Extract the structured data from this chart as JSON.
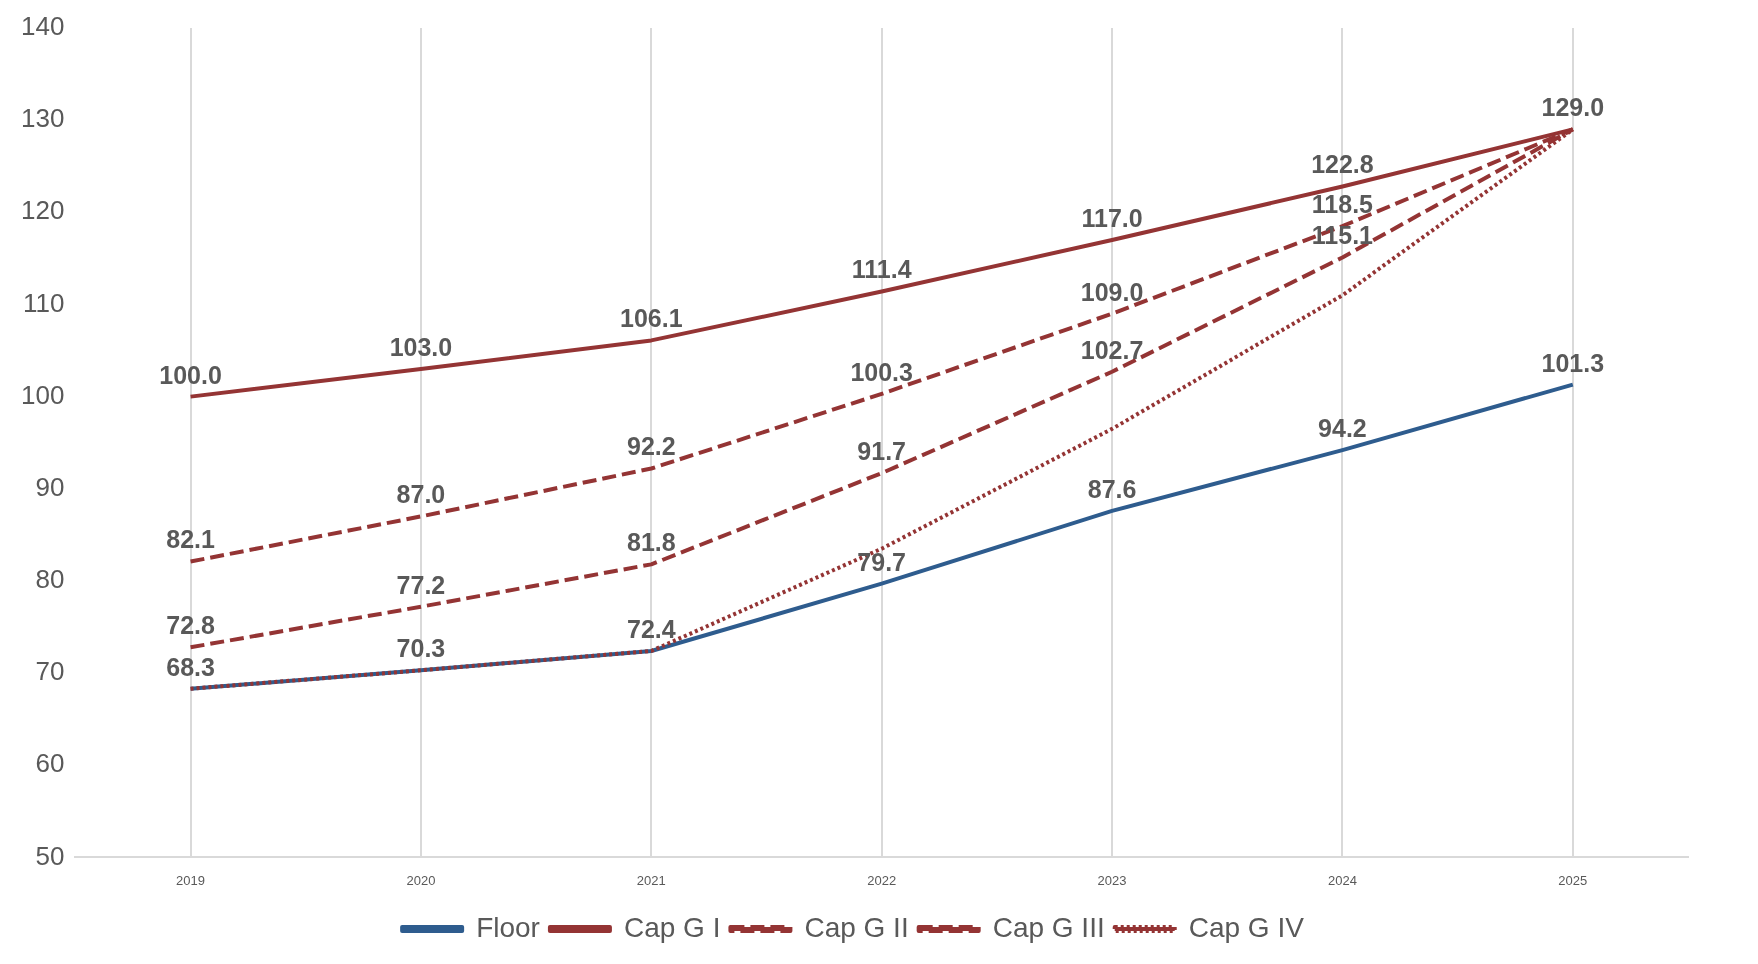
{
  "chart_data": {
    "type": "line",
    "categories": [
      "2019",
      "2020",
      "2021",
      "2022",
      "2023",
      "2024",
      "2025"
    ],
    "series": [
      {
        "name": "Floor",
        "color": "#2e5c8e",
        "line_style": "solid",
        "values": [
          68.3,
          70.3,
          72.4,
          79.7,
          87.6,
          94.2,
          101.3
        ],
        "value_labels": [
          "68.3",
          "70.3",
          "72.4",
          "79.7",
          "87.6",
          "94.2",
          "101.3"
        ]
      },
      {
        "name": "Cap G I",
        "color": "#943434",
        "line_style": "solid",
        "values": [
          100.0,
          103.0,
          106.1,
          111.4,
          117.0,
          122.8,
          129.0
        ],
        "value_labels": [
          "100.0",
          "103.0",
          "106.1",
          "111.4",
          "117.0",
          "122.8",
          "129.0"
        ]
      },
      {
        "name": "Cap G II",
        "color": "#943434",
        "line_style": "dashed",
        "values": [
          82.1,
          87.0,
          92.2,
          100.3,
          109.0,
          118.5,
          129.0
        ],
        "value_labels": [
          "82.1",
          "87.0",
          "92.2",
          "100.3",
          "109.0",
          "118.5",
          null
        ]
      },
      {
        "name": "Cap G III",
        "color": "#943434",
        "line_style": "dashed",
        "values": [
          72.8,
          77.2,
          81.8,
          91.7,
          102.7,
          115.1,
          129.0
        ],
        "value_labels": [
          "72.8",
          "77.2",
          "81.8",
          "91.7",
          "102.7",
          "115.1",
          null
        ]
      },
      {
        "name": "Cap G IV",
        "color": "#943434",
        "line_style": "dotted",
        "values": [
          68.3,
          70.3,
          72.4,
          83.5,
          96.5,
          111.0,
          129.0
        ],
        "value_labels": [
          null,
          null,
          null,
          null,
          null,
          null,
          null
        ]
      }
    ],
    "ylim": [
      50,
      140
    ],
    "yticks": [
      50,
      60,
      70,
      80,
      90,
      100,
      110,
      120,
      130,
      140
    ],
    "grid": "x",
    "legend": "bottom",
    "marker": "none"
  }
}
